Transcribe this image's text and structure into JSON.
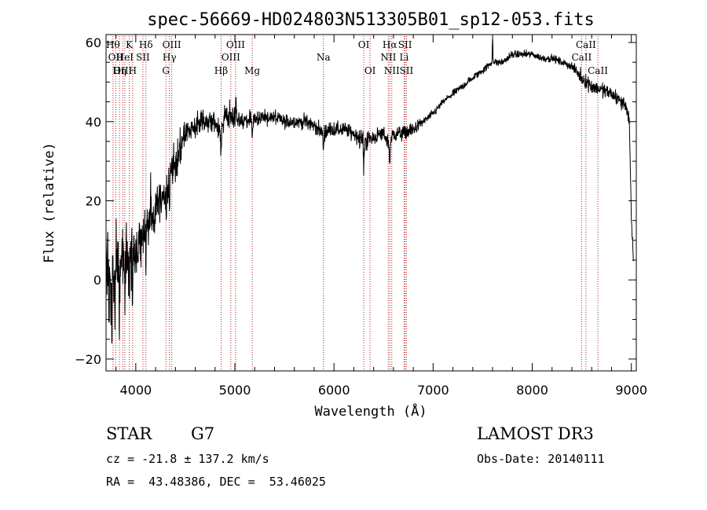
{
  "title": "spec-56669-HD024803N513305B01_sp12-053.fits",
  "footer": {
    "object_class": "STAR",
    "subclass": "G7",
    "survey": "LAMOST DR3",
    "velocity": "cz = -21.8 ± 137.2 km/s",
    "obs_date": "Obs-Date: 20140111",
    "coords": "RA =  43.48386, DEC =  53.46025"
  },
  "chart_data": {
    "type": "line",
    "title": "spec-56669-HD024803N513305B01_sp12-053.fits",
    "xlabel": "Wavelength (Å)",
    "ylabel": "Flux (relative)",
    "xlim": [
      3700,
      9050
    ],
    "ylim": [
      -23,
      62
    ],
    "x_ticks": [
      4000,
      5000,
      6000,
      7000,
      8000,
      9000
    ],
    "y_ticks": [
      -20,
      0,
      20,
      40,
      60
    ],
    "grid": false,
    "line_color": "#000000",
    "marker_color": "#b22222",
    "spectrum_profile": {
      "x": [
        3700,
        3720,
        3750,
        3780,
        3800,
        3830,
        3860,
        3900,
        3950,
        4000,
        4050,
        4100,
        4150,
        4200,
        4250,
        4300,
        4350,
        4400,
        4450,
        4500,
        4600,
        4700,
        4800,
        4860,
        4900,
        5000,
        5100,
        5200,
        5300,
        5400,
        5500,
        5600,
        5700,
        5800,
        5890,
        5950,
        6000,
        6100,
        6200,
        6300,
        6400,
        6500,
        6560,
        6600,
        6700,
        6800,
        6900,
        7000,
        7100,
        7200,
        7300,
        7400,
        7500,
        7600,
        7700,
        7800,
        7900,
        8000,
        8100,
        8200,
        8300,
        8400,
        8500,
        8600,
        8700,
        8800,
        8900,
        8950,
        8980,
        9000,
        9020
      ],
      "y": [
        5,
        2,
        -5,
        3,
        8,
        2,
        6,
        5,
        8,
        6,
        10,
        12,
        14,
        17,
        20,
        22,
        27,
        30,
        34,
        37,
        39,
        40,
        40,
        36,
        42,
        41,
        40,
        41,
        41,
        41,
        40,
        40,
        40,
        39,
        37,
        38,
        38,
        38,
        37,
        35,
        36,
        37,
        34,
        37,
        37,
        38,
        40,
        42,
        45,
        47,
        49,
        51,
        53,
        55,
        55,
        57,
        57,
        57,
        56,
        56,
        55,
        54,
        51,
        49,
        48,
        47,
        45,
        44,
        40,
        15,
        5
      ],
      "noise": [
        9,
        9,
        10,
        10,
        10,
        9,
        9,
        8,
        8,
        7,
        7,
        7,
        6,
        6,
        6,
        6,
        5,
        5,
        5,
        4,
        3,
        3,
        3,
        3,
        3,
        3,
        2,
        2,
        2,
        2,
        2,
        2,
        2,
        2,
        2,
        2,
        2,
        2,
        2,
        3,
        2,
        2,
        2,
        2,
        2,
        2,
        1,
        1,
        1,
        1,
        1,
        1,
        1,
        1,
        1,
        1,
        1,
        1,
        1,
        1,
        1,
        1,
        2,
        2,
        2,
        2,
        2,
        2,
        2,
        2,
        2
      ]
    },
    "spectral_lines": [
      {
        "x": 3770,
        "label": "Hθ",
        "row": 1
      },
      {
        "x": 3797,
        "label": "OII",
        "row": 2
      },
      {
        "x": 3835,
        "label": "Hη",
        "row": 3
      },
      {
        "x": 3869,
        "label": "OIII",
        "row": 3
      },
      {
        "x": 3889,
        "label": "HeI",
        "row": 2
      },
      {
        "x": 3934,
        "label": "K",
        "row": 1
      },
      {
        "x": 3968,
        "label": "H",
        "row": 3
      },
      {
        "x": 4072,
        "label": "SII",
        "row": 2
      },
      {
        "x": 4102,
        "label": "Hδ",
        "row": 1
      },
      {
        "x": 4304,
        "label": "G",
        "row": 3
      },
      {
        "x": 4340,
        "label": "Hγ",
        "row": 2
      },
      {
        "x": 4363,
        "label": "OIII",
        "row": 1
      },
      {
        "x": 4861,
        "label": "Hβ",
        "row": 3
      },
      {
        "x": 4959,
        "label": "OIII",
        "row": 2
      },
      {
        "x": 5007,
        "label": "OIII",
        "row": 1
      },
      {
        "x": 5175,
        "label": "Mg",
        "row": 3
      },
      {
        "x": 5893,
        "label": "Na",
        "row": 2
      },
      {
        "x": 6300,
        "label": "OI",
        "row": 1
      },
      {
        "x": 6364,
        "label": "OI",
        "row": 3
      },
      {
        "x": 6548,
        "label": "NII",
        "row": 2
      },
      {
        "x": 6563,
        "label": "Hα",
        "row": 1
      },
      {
        "x": 6583,
        "label": "NII",
        "row": 3
      },
      {
        "x": 6707,
        "label": "Li",
        "row": 2
      },
      {
        "x": 6717,
        "label": "SII",
        "row": 1
      },
      {
        "x": 6731,
        "label": "SII",
        "row": 3
      },
      {
        "x": 8498,
        "label": "CaII",
        "row": 2
      },
      {
        "x": 8542,
        "label": "CaII",
        "row": 1
      },
      {
        "x": 8662,
        "label": "CaII",
        "row": 3
      }
    ],
    "absorption_features": [
      {
        "x": 3730,
        "depth": 10
      },
      {
        "x": 3760,
        "depth": 12
      },
      {
        "x": 3790,
        "depth": 14
      },
      {
        "x": 3835,
        "depth": 12
      },
      {
        "x": 3890,
        "depth": 10
      },
      {
        "x": 3934,
        "depth": 12
      },
      {
        "x": 3968,
        "depth": 12
      },
      {
        "x": 4102,
        "depth": 10
      },
      {
        "x": 4340,
        "depth": 6
      },
      {
        "x": 4861,
        "depth": 5
      },
      {
        "x": 5175,
        "depth": 5
      },
      {
        "x": 5893,
        "depth": 11
      },
      {
        "x": 6300,
        "depth": 7
      },
      {
        "x": 6563,
        "depth": 5
      }
    ],
    "emission_features": [
      {
        "x": 4150,
        "height": 8
      },
      {
        "x": 5010,
        "height": 6
      },
      {
        "x": 5893,
        "height": 8
      },
      {
        "x": 7600,
        "height": 7
      }
    ]
  }
}
